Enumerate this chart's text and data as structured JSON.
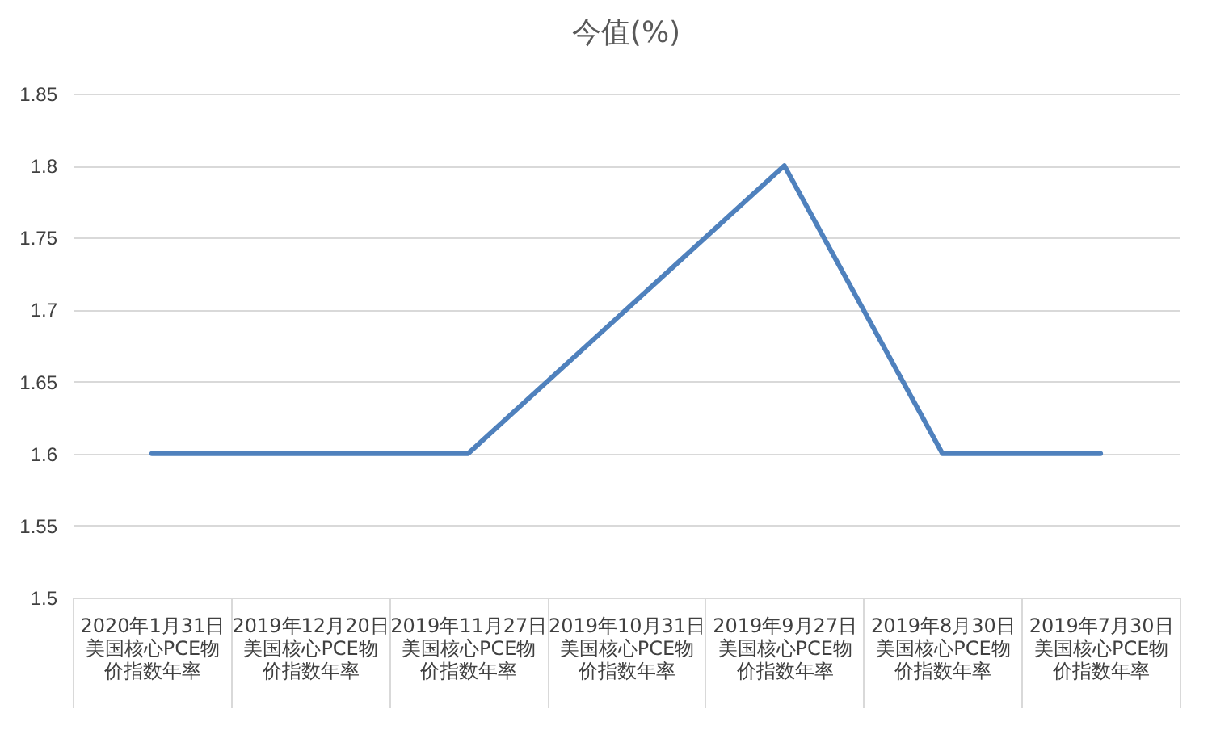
{
  "chart_data": {
    "type": "line",
    "title": "今值(%)",
    "categories": [
      "2020年1月31日美国核心PCE物价指数年率",
      "2019年12月20日美国核心PCE物价指数年率",
      "2019年11月27日美国核心PCE物价指数年率",
      "2019年10月31日美国核心PCE物价指数年率",
      "2019年9月27日美国核心PCE物价指数年率",
      "2019年8月30日美国核心PCE物价指数年率",
      "2019年7月30日美国核心PCE物价指数年率"
    ],
    "series": [
      {
        "color": "#4f81bd",
        "values": [
          1.6,
          1.6,
          1.6,
          1.7,
          1.8,
          1.6,
          1.6
        ]
      }
    ],
    "ylim": [
      1.5,
      1.85
    ],
    "yticks": [
      1.5,
      1.55,
      1.6,
      1.65,
      1.7,
      1.75,
      1.8,
      1.85
    ],
    "grid": "y",
    "marker": "none",
    "line_style": "solid"
  }
}
